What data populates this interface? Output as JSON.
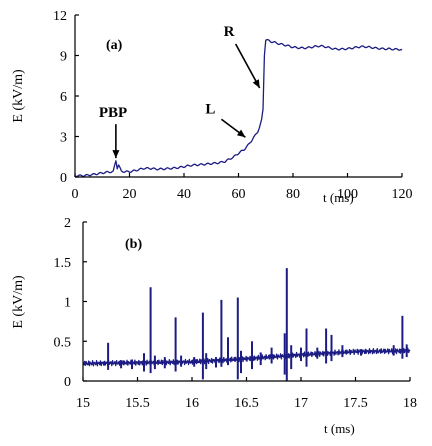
{
  "chart_data": [
    {
      "panel": "(a)",
      "type": "line",
      "xlabel": "t (ms)",
      "ylabel": "E (kV/m)",
      "xlim": [
        0,
        120
      ],
      "ylim": [
        0,
        12
      ],
      "xticks": [
        0,
        20,
        40,
        60,
        80,
        100,
        120
      ],
      "yticks": [
        0,
        3,
        6,
        9,
        12
      ],
      "color": "#1c1c84",
      "series": [
        {
          "x": [
            0,
            5,
            10,
            14,
            15,
            15.5,
            16,
            17,
            20,
            25,
            30,
            35,
            40,
            45,
            50,
            55,
            58,
            60,
            62,
            64,
            66,
            67,
            68,
            68.5,
            69,
            69.5,
            70,
            72,
            75,
            80,
            85,
            90,
            95,
            100,
            105,
            110,
            115,
            120
          ],
          "y": [
            0.1,
            0.2,
            0.25,
            0.35,
            1.2,
            0.6,
            0.9,
            0.45,
            0.45,
            0.6,
            0.55,
            0.7,
            0.75,
            0.85,
            1.05,
            1.15,
            1.4,
            1.7,
            2.0,
            2.5,
            3.1,
            3.4,
            3.9,
            4.3,
            5.0,
            9.0,
            10.2,
            10.0,
            9.8,
            9.65,
            9.6,
            9.65,
            9.5,
            9.55,
            9.6,
            9.55,
            9.55,
            9.4
          ]
        }
      ],
      "annotations": [
        {
          "text": "PBP",
          "x": 15,
          "y": 1.1
        },
        {
          "text": "L",
          "x": 64,
          "y": 2.5
        },
        {
          "text": "R",
          "x": 68.5,
          "y": 6.3
        }
      ]
    },
    {
      "panel": "(b)",
      "type": "line",
      "xlabel": "t (ms)",
      "ylabel": "E (kV/m)",
      "xlim": [
        15,
        18
      ],
      "ylim": [
        0,
        2
      ],
      "xticks": [
        "15",
        "15.5",
        "16",
        "16.5",
        "17",
        "17.5",
        "18"
      ],
      "yticks": [
        "0",
        "0.5",
        "1",
        "1.5",
        "2"
      ],
      "color": "#1c1c84",
      "baseline": [
        [
          15.0,
          0.22
        ],
        [
          15.5,
          0.23
        ],
        [
          16.0,
          0.24
        ],
        [
          16.5,
          0.28
        ],
        [
          17.0,
          0.33
        ],
        [
          17.5,
          0.37
        ],
        [
          18.0,
          0.38
        ]
      ],
      "spikes": [
        {
          "x": 15.23,
          "high": 0.48,
          "low": 0.14
        },
        {
          "x": 15.35,
          "high": 0.26,
          "low": 0.16
        },
        {
          "x": 15.45,
          "high": 0.27,
          "low": 0.15
        },
        {
          "x": 15.56,
          "high": 0.35,
          "low": 0.12
        },
        {
          "x": 15.62,
          "high": 1.18,
          "low": 0.1
        },
        {
          "x": 15.66,
          "high": 0.32,
          "low": 0.15
        },
        {
          "x": 15.75,
          "high": 0.3,
          "low": 0.16
        },
        {
          "x": 15.85,
          "high": 0.8,
          "low": 0.12
        },
        {
          "x": 15.9,
          "high": 0.32,
          "low": 0.18
        },
        {
          "x": 16.02,
          "high": 0.3,
          "low": 0.18
        },
        {
          "x": 16.1,
          "high": 0.86,
          "low": 0.02
        },
        {
          "x": 16.13,
          "high": 0.35,
          "low": 0.15
        },
        {
          "x": 16.22,
          "high": 0.3,
          "low": 0.17
        },
        {
          "x": 16.27,
          "high": 1.02,
          "low": 0.18
        },
        {
          "x": 16.33,
          "high": 0.55,
          "low": 0.2
        },
        {
          "x": 16.42,
          "high": 1.05,
          "low": 0.02
        },
        {
          "x": 16.45,
          "high": 0.38,
          "low": 0.1
        },
        {
          "x": 16.55,
          "high": 0.5,
          "low": 0.15
        },
        {
          "x": 16.63,
          "high": 0.36,
          "low": 0.2
        },
        {
          "x": 16.73,
          "high": 0.42,
          "low": 0.22
        },
        {
          "x": 16.85,
          "high": 0.6,
          "low": 0.08
        },
        {
          "x": 16.87,
          "high": 1.42,
          "low": 0.0
        },
        {
          "x": 16.91,
          "high": 0.45,
          "low": 0.15
        },
        {
          "x": 17.0,
          "high": 0.42,
          "low": 0.25
        },
        {
          "x": 17.05,
          "high": 0.66,
          "low": 0.18
        },
        {
          "x": 17.15,
          "high": 0.42,
          "low": 0.28
        },
        {
          "x": 17.23,
          "high": 0.66,
          "low": 0.22
        },
        {
          "x": 17.28,
          "high": 0.58,
          "low": 0.25
        },
        {
          "x": 17.38,
          "high": 0.45,
          "low": 0.3
        },
        {
          "x": 17.55,
          "high": 0.4,
          "low": 0.32
        },
        {
          "x": 17.85,
          "high": 0.45,
          "low": 0.32
        },
        {
          "x": 17.93,
          "high": 0.82,
          "low": 0.28
        },
        {
          "x": 17.97,
          "high": 0.46,
          "low": 0.3
        }
      ]
    }
  ]
}
